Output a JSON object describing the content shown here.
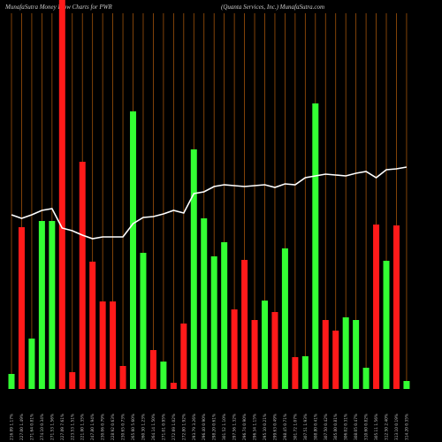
{
  "chart_data": {
    "type": "bar",
    "title": "MunafaSutra  Money Flow  Charts for PWR",
    "subtitle": "(Quanta  Services,  Inc.) MunafaSutra.com",
    "categories": [
      "216.09 1.17%",
      "227.00 1.49%",
      "271.64 0.81%",
      "274.10 0.34%",
      "271.53 1.56%",
      "227.09 7.61%",
      "223.53 1.51%",
      "221.00 1.35%",
      "247.80 1.94%",
      "230.06 0.79%",
      "228.92 0.63%",
      "230.65 0.73%",
      "265.60 5.60%",
      "260.30 1.23%",
      "264.14 1.50%",
      "271.01 0.95%",
      "272.69 1.02%",
      "272.80 1.92%",
      "293.79 3.26%",
      "296.40 0.90%",
      "298.20 0.61%",
      "301.52 1.10%",
      "297.56 1.32%",
      "296.74 0.90%",
      "296.34 1.15%",
      "295.10 0.21%",
      "299.63 0.49%",
      "298.45 0.71%",
      "301.72 1.07%",
      "307.51 1.93%",
      "308.80 0.41%",
      "307.50 0.42%",
      "305.00 0.81%",
      "306.02 0.31%",
      "308.05 0.47%",
      "310.60 0.82%",
      "305.11 1.56%",
      "312.50 2.40%",
      "313.10 0.19%",
      "314.20 0.35%"
    ],
    "series": [
      {
        "name": "Money Flow",
        "values": [
          17,
          183,
          57,
          190,
          190,
          440,
          19,
          257,
          144,
          99,
          99,
          26,
          314,
          154,
          44,
          31,
          7,
          74,
          271,
          193,
          150,
          166,
          90,
          146,
          78,
          100,
          87,
          159,
          36,
          37,
          323,
          78,
          66,
          81,
          78,
          24,
          186,
          145,
          185,
          9
        ],
        "colors": [
          "#33ff33",
          "#ff1a1a",
          "#33ff33",
          "#33ff33",
          "#33ff33",
          "#ff1a1a",
          "#ff1a1a",
          "#ff1a1a",
          "#ff1a1a",
          "#ff1a1a",
          "#ff1a1a",
          "#ff1a1a",
          "#33ff33",
          "#33ff33",
          "#ff1a1a",
          "#33ff33",
          "#ff1a1a",
          "#ff1a1a",
          "#33ff33",
          "#33ff33",
          "#33ff33",
          "#33ff33",
          "#ff1a1a",
          "#ff1a1a",
          "#ff1a1a",
          "#33ff33",
          "#ff1a1a",
          "#33ff33",
          "#ff1a1a",
          "#33ff33",
          "#33ff33",
          "#ff1a1a",
          "#ff1a1a",
          "#33ff33",
          "#33ff33",
          "#33ff33",
          "#ff1a1a",
          "#33ff33",
          "#ff1a1a",
          "#33ff33"
        ]
      },
      {
        "name": "Price",
        "axis": "y2",
        "color": "#ffffff",
        "type": "line",
        "values": [
          197,
          193,
          197,
          202,
          204,
          182,
          179,
          174,
          170,
          172,
          172,
          172,
          187,
          194,
          195,
          198,
          202,
          199,
          221,
          223,
          229,
          231,
          230,
          229,
          230,
          231,
          228,
          232,
          231,
          239,
          241,
          243,
          242,
          241,
          244,
          246,
          239,
          248,
          249,
          251
        ]
      }
    ],
    "ylim": [
      0,
      440
    ],
    "y2lim": [
      0,
      440
    ],
    "grid_color": "#a0520a"
  }
}
